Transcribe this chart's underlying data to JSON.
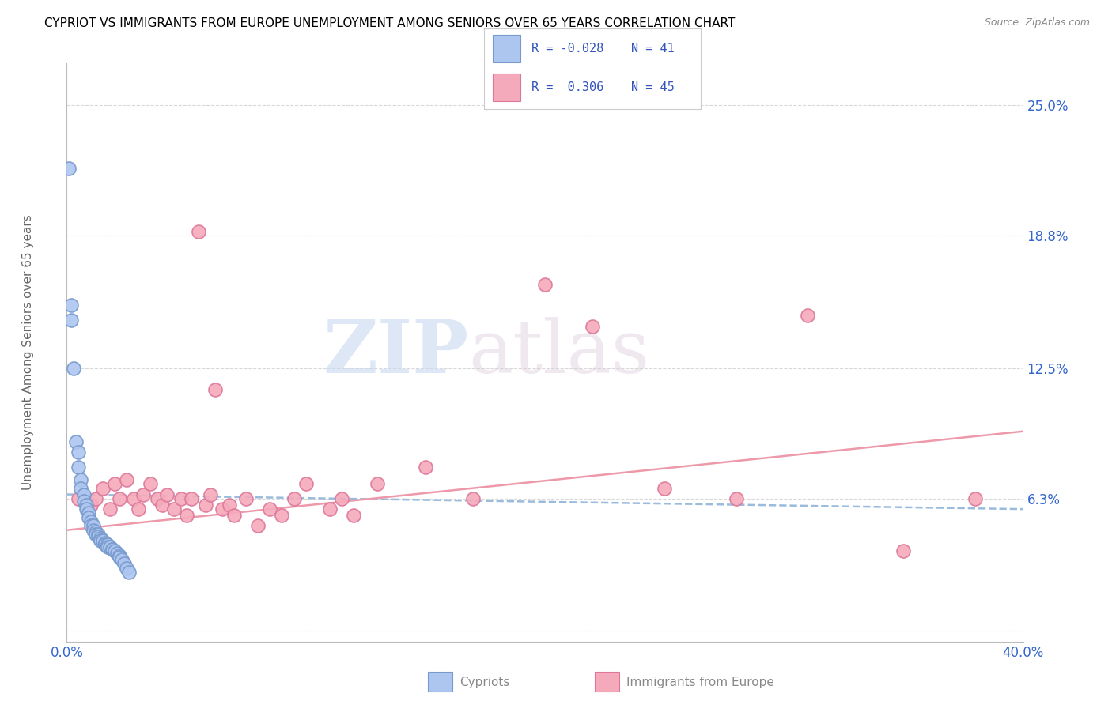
{
  "title": "CYPRIOT VS IMMIGRANTS FROM EUROPE UNEMPLOYMENT AMONG SENIORS OVER 65 YEARS CORRELATION CHART",
  "source": "Source: ZipAtlas.com",
  "ylabel": "Unemployment Among Seniors over 65 years",
  "xlim": [
    0.0,
    0.4
  ],
  "ylim": [
    -0.005,
    0.27
  ],
  "xticks": [
    0.0,
    0.1,
    0.2,
    0.3,
    0.4
  ],
  "xticklabels": [
    "0.0%",
    "",
    "",
    "",
    "40.0%"
  ],
  "ytick_positions": [
    0.0,
    0.063,
    0.125,
    0.188,
    0.25
  ],
  "ytick_labels": [
    "",
    "6.3%",
    "12.5%",
    "18.8%",
    "25.0%"
  ],
  "background_color": "#ffffff",
  "grid_color": "#d8d8d8",
  "watermark_zip": "ZIP",
  "watermark_atlas": "atlas",
  "legend_text_color": "#3355bb",
  "cypriot_color": "#adc6f0",
  "cypriot_edge_color": "#7799cc",
  "immigrant_color": "#f5aabb",
  "immigrant_edge_color": "#dd7799",
  "trend_cypriot_color": "#99bbdd",
  "trend_immigrant_color": "#ee99aa",
  "cypriot_R_val": "-0.028",
  "cypriot_N_val": "41",
  "immigrant_R_val": "0.306",
  "immigrant_N_val": "45",
  "cypriot_label": "Cypriots",
  "immigrant_label": "Immigrants from Europe",
  "cypriot_points": [
    [
      0.001,
      0.22
    ],
    [
      0.002,
      0.155
    ],
    [
      0.002,
      0.148
    ],
    [
      0.003,
      0.125
    ],
    [
      0.004,
      0.09
    ],
    [
      0.005,
      0.085
    ],
    [
      0.005,
      0.078
    ],
    [
      0.006,
      0.072
    ],
    [
      0.006,
      0.068
    ],
    [
      0.007,
      0.065
    ],
    [
      0.007,
      0.062
    ],
    [
      0.008,
      0.06
    ],
    [
      0.008,
      0.058
    ],
    [
      0.009,
      0.056
    ],
    [
      0.009,
      0.054
    ],
    [
      0.01,
      0.052
    ],
    [
      0.01,
      0.05
    ],
    [
      0.011,
      0.05
    ],
    [
      0.011,
      0.048
    ],
    [
      0.012,
      0.047
    ],
    [
      0.012,
      0.046
    ],
    [
      0.013,
      0.046
    ],
    [
      0.013,
      0.045
    ],
    [
      0.014,
      0.044
    ],
    [
      0.014,
      0.043
    ],
    [
      0.015,
      0.043
    ],
    [
      0.016,
      0.042
    ],
    [
      0.016,
      0.041
    ],
    [
      0.017,
      0.041
    ],
    [
      0.017,
      0.04
    ],
    [
      0.018,
      0.04
    ],
    [
      0.019,
      0.039
    ],
    [
      0.019,
      0.039
    ],
    [
      0.02,
      0.038
    ],
    [
      0.021,
      0.037
    ],
    [
      0.022,
      0.036
    ],
    [
      0.022,
      0.035
    ],
    [
      0.023,
      0.034
    ],
    [
      0.024,
      0.032
    ],
    [
      0.025,
      0.03
    ],
    [
      0.026,
      0.028
    ]
  ],
  "immigrant_points": [
    [
      0.005,
      0.063
    ],
    [
      0.01,
      0.06
    ],
    [
      0.012,
      0.063
    ],
    [
      0.015,
      0.068
    ],
    [
      0.018,
      0.058
    ],
    [
      0.02,
      0.07
    ],
    [
      0.022,
      0.063
    ],
    [
      0.025,
      0.072
    ],
    [
      0.028,
      0.063
    ],
    [
      0.03,
      0.058
    ],
    [
      0.032,
      0.065
    ],
    [
      0.035,
      0.07
    ],
    [
      0.038,
      0.063
    ],
    [
      0.04,
      0.06
    ],
    [
      0.042,
      0.065
    ],
    [
      0.045,
      0.058
    ],
    [
      0.048,
      0.063
    ],
    [
      0.05,
      0.055
    ],
    [
      0.052,
      0.063
    ],
    [
      0.055,
      0.19
    ],
    [
      0.058,
      0.06
    ],
    [
      0.06,
      0.065
    ],
    [
      0.062,
      0.115
    ],
    [
      0.065,
      0.058
    ],
    [
      0.068,
      0.06
    ],
    [
      0.07,
      0.055
    ],
    [
      0.075,
      0.063
    ],
    [
      0.08,
      0.05
    ],
    [
      0.085,
      0.058
    ],
    [
      0.09,
      0.055
    ],
    [
      0.095,
      0.063
    ],
    [
      0.1,
      0.07
    ],
    [
      0.11,
      0.058
    ],
    [
      0.115,
      0.063
    ],
    [
      0.12,
      0.055
    ],
    [
      0.13,
      0.07
    ],
    [
      0.15,
      0.078
    ],
    [
      0.17,
      0.063
    ],
    [
      0.2,
      0.165
    ],
    [
      0.22,
      0.145
    ],
    [
      0.25,
      0.068
    ],
    [
      0.28,
      0.063
    ],
    [
      0.31,
      0.15
    ],
    [
      0.35,
      0.038
    ],
    [
      0.38,
      0.063
    ]
  ],
  "cy_trend_x": [
    0.0,
    0.4
  ],
  "cy_trend_y": [
    0.065,
    0.058
  ],
  "im_trend_x": [
    0.0,
    0.4
  ],
  "im_trend_y": [
    0.048,
    0.095
  ]
}
